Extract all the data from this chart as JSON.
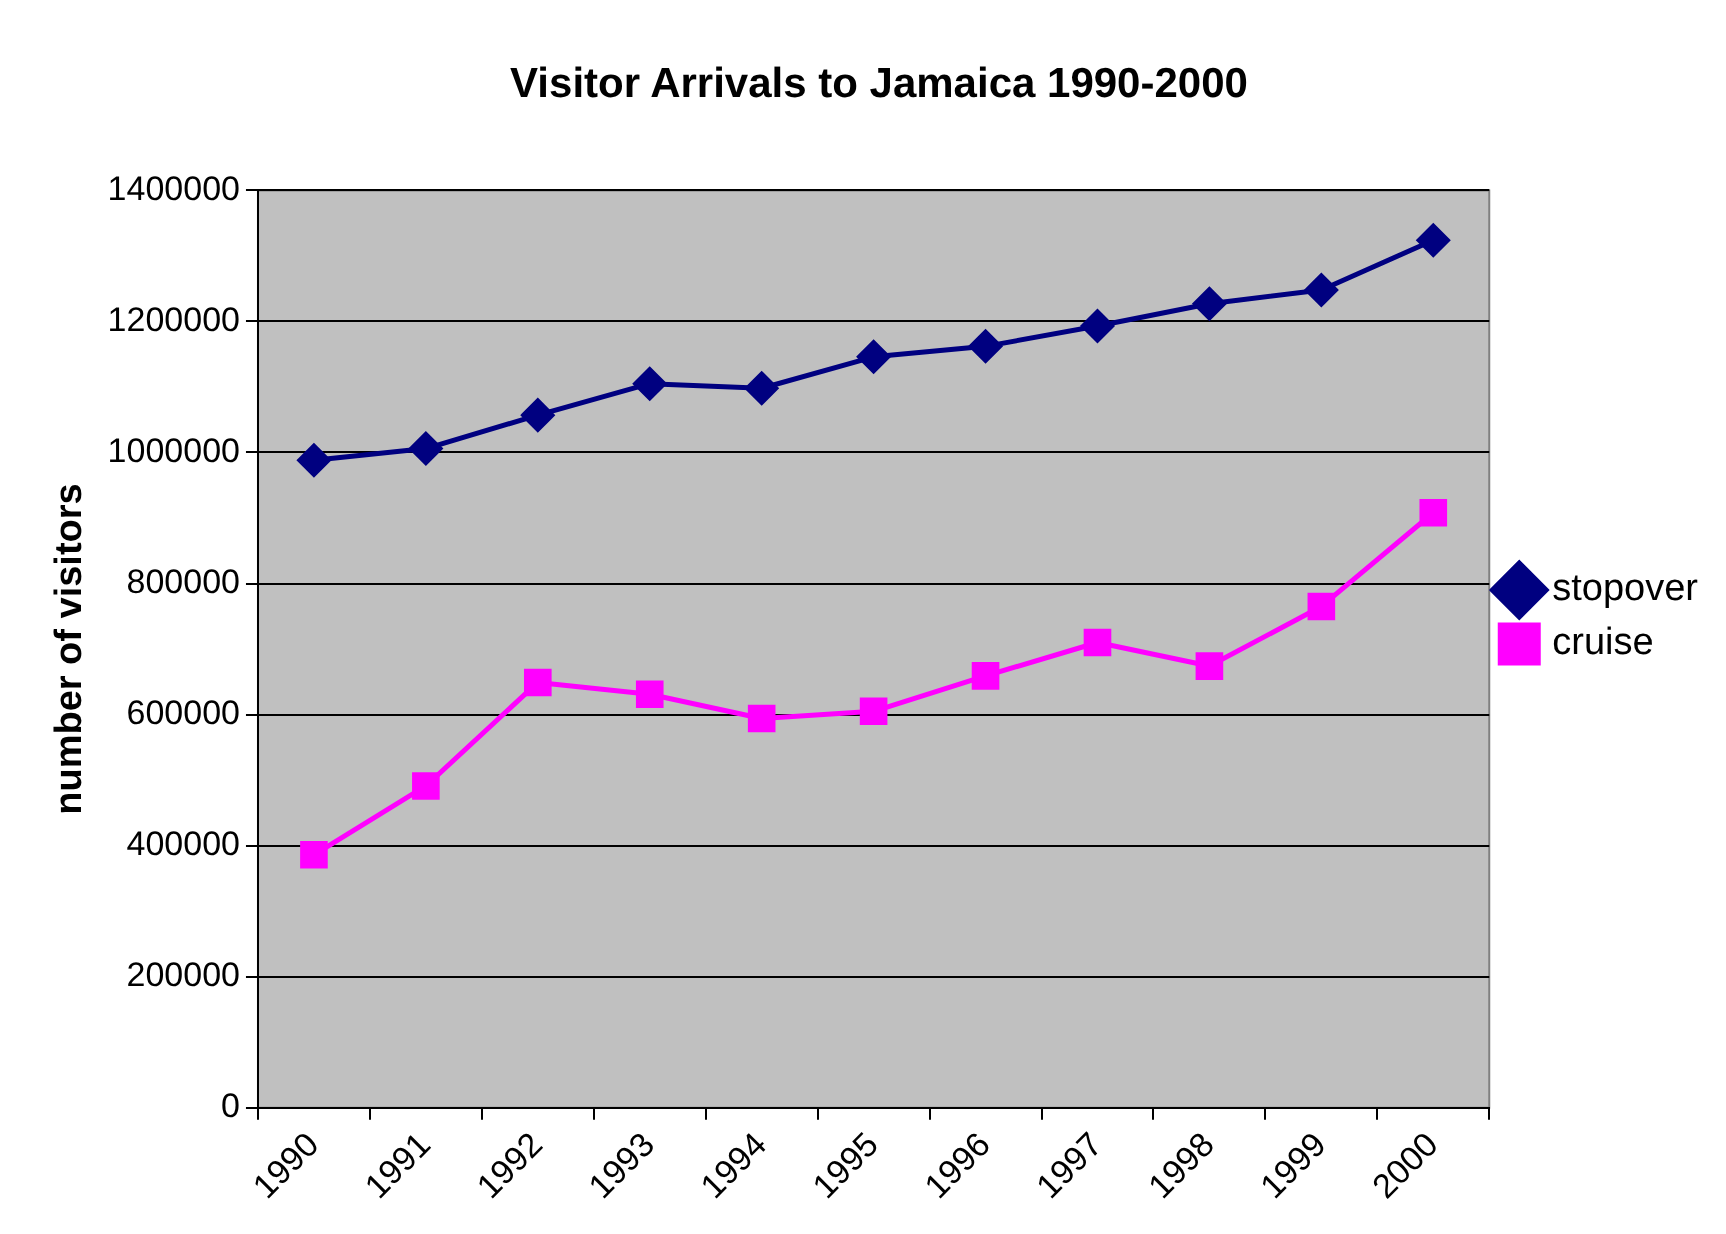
{
  "chart_data": {
    "type": "line",
    "title": "Visitor Arrivals to Jamaica 1990-2000",
    "ylabel": "number of visitors",
    "categories": [
      "1990",
      "1991",
      "1992",
      "1993",
      "1994",
      "1995",
      "1996",
      "1997",
      "1998",
      "1999",
      "2000"
    ],
    "series": [
      {
        "name": "stopover",
        "color": "#000080",
        "marker": "diamond",
        "values": [
          988000,
          1006000,
          1057000,
          1105000,
          1098000,
          1146000,
          1162000,
          1193000,
          1227000,
          1248000,
          1324000
        ]
      },
      {
        "name": "cruise",
        "color": "#ff00ff",
        "marker": "square",
        "values": [
          386000,
          491000,
          649000,
          631000,
          594000,
          605000,
          659000,
          710000,
          674000,
          765000,
          908000
        ]
      }
    ],
    "ylim": [
      0,
      1400000
    ],
    "yticks": [
      0,
      200000,
      400000,
      600000,
      800000,
      1000000,
      1200000,
      1400000
    ],
    "grid": "y",
    "legend": "right"
  }
}
